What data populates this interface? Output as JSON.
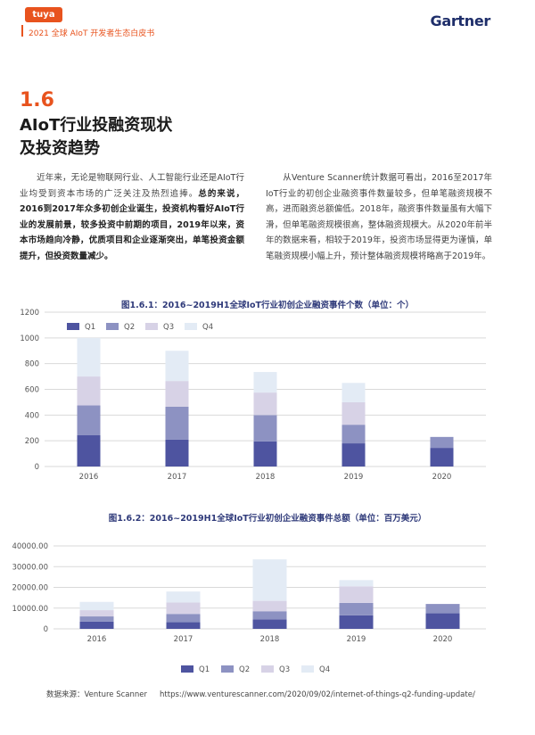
{
  "header": {
    "brand": "tuya",
    "subtitle": "2021 全球 AIoT 开发者生态白皮书",
    "partner": "Gartner"
  },
  "section": {
    "number": "1.6",
    "title_line1": "AIoT行业投融资现状",
    "title_line2": "及投资趋势"
  },
  "paragraphs": {
    "left_plain": "近年来，无论是物联网行业、人工智能行业还是AIoT行业均受到资本市场的广泛关注及热烈追捧。",
    "left_bold": "总的来说，2016到2017年众多初创企业诞生，投资机构看好AIoT行业的发展前景，较多投资中前期的项目，2019年以来，资本市场趋向冷静，优质项目和企业逐渐突出，单笔投资金额提升，但投资数量减少。",
    "right": "从Venture Scanner统计数据可看出，2016至2017年IoT行业的初创企业融资事件数量较多，但单笔融资规模不高，进而融资总额偏低。2018年，融资事件数量虽有大幅下滑，但单笔融资规模很高，整体融资规模大。从2020年前半年的数据来看，相较于2019年，投资市场显得更为谨慎，单笔融资规模小幅上升，预计整体融资规模将略高于2019年。"
  },
  "colors": {
    "Q1": "#4e54a0",
    "Q2": "#8d92c2",
    "Q3": "#d7d2e6",
    "Q4": "#e3ebf5",
    "grid": "#d9d9d9",
    "axis_text": "#555555"
  },
  "chart_data": [
    {
      "type": "bar",
      "stacked": true,
      "title": "图1.6.1：2016~2019H1全球IoT行业初创企业融资事件个数（单位：个）",
      "categories": [
        "2016",
        "2017",
        "2018",
        "2019",
        "2020"
      ],
      "series": [
        {
          "name": "Q1",
          "values": [
            245,
            210,
            195,
            180,
            145
          ]
        },
        {
          "name": "Q2",
          "values": [
            230,
            255,
            205,
            145,
            85
          ]
        },
        {
          "name": "Q3",
          "values": [
            225,
            200,
            175,
            175,
            0
          ]
        },
        {
          "name": "Q4",
          "values": [
            300,
            235,
            160,
            150,
            0
          ]
        }
      ],
      "ylim": [
        0,
        1200
      ],
      "yticks": [
        0,
        200,
        400,
        600,
        800,
        1000,
        1200
      ],
      "grid": true,
      "legend": "top-left"
    },
    {
      "type": "bar",
      "stacked": true,
      "title": "图1.6.2：2016~2019H1全球IoT行业初创企业融资事件总额（单位：百万美元）",
      "categories": [
        "2016",
        "2017",
        "2018",
        "2019",
        "2020"
      ],
      "series": [
        {
          "name": "Q1",
          "values": [
            3500,
            3200,
            4500,
            6500,
            7500
          ]
        },
        {
          "name": "Q2",
          "values": [
            2500,
            4000,
            4000,
            6000,
            4500
          ]
        },
        {
          "name": "Q3",
          "values": [
            3000,
            5500,
            5000,
            8000,
            0
          ]
        },
        {
          "name": "Q4",
          "values": [
            4000,
            5300,
            20000,
            3000,
            0
          ]
        }
      ],
      "ylim": [
        0,
        40000
      ],
      "yticks": [
        "0",
        "10000.00",
        "20000.00",
        "30000.00",
        "40000.00"
      ],
      "ytick_values": [
        0,
        10000,
        20000,
        30000,
        40000
      ],
      "grid": true,
      "legend": "bottom"
    }
  ],
  "footer": {
    "source_label": "数据来源：Venture Scanner",
    "source_url": "https://www.venturescanner.com/2020/09/02/internet-of-things-q2-funding-update/"
  }
}
